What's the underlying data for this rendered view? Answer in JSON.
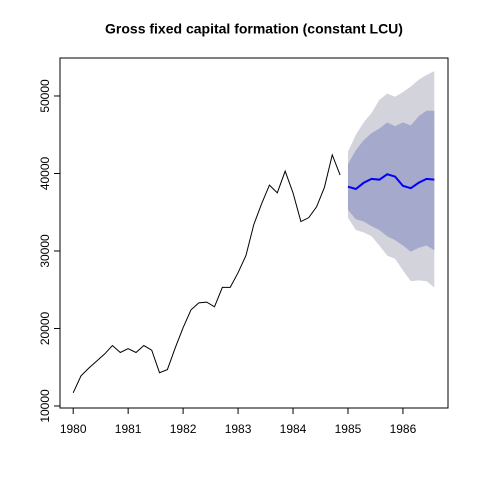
{
  "chart_data": {
    "type": "line",
    "title": "Gross fixed capital formation (constant LCU)",
    "x": [
      1980,
      1980.143,
      1980.286,
      1980.429,
      1980.571,
      1980.714,
      1980.857,
      1981,
      1981.143,
      1981.286,
      1981.429,
      1981.571,
      1981.714,
      1981.857,
      1982,
      1982.143,
      1982.286,
      1982.429,
      1982.571,
      1982.714,
      1982.857,
      1983,
      1983.143,
      1983.286,
      1983.429,
      1983.571,
      1983.714,
      1983.857,
      1984,
      1984.143,
      1984.286,
      1984.429,
      1984.571,
      1984.714,
      1984.857
    ],
    "values": [
      11700,
      13900,
      14900,
      15800,
      16700,
      17800,
      16900,
      17400,
      16900,
      17800,
      17200,
      14300,
      14700,
      17500,
      20100,
      22400,
      23300,
      23400,
      22800,
      25300,
      25300,
      27200,
      29400,
      33400,
      36100,
      38500,
      37500,
      40300,
      37500,
      33800,
      34300,
      35700,
      38200,
      42400,
      39800
    ],
    "color": "#000000",
    "forecast": {
      "x": [
        1985,
        1985.143,
        1985.286,
        1985.429,
        1985.571,
        1985.714,
        1985.857,
        1986,
        1986.143,
        1986.286,
        1986.429,
        1986.571
      ],
      "mean": [
        38300,
        38000,
        38800,
        39300,
        39200,
        39900,
        39600,
        38400,
        38100,
        38800,
        39300,
        39200
      ],
      "lo80": [
        35300,
        34100,
        33800,
        33200,
        32700,
        31900,
        31400,
        30700,
        29900,
        30400,
        30700,
        30100
      ],
      "hi80": [
        41200,
        43000,
        44300,
        45200,
        45800,
        46600,
        46100,
        46600,
        46200,
        47400,
        48100,
        48100
      ],
      "lo95": [
        34300,
        32700,
        32400,
        31900,
        30700,
        29400,
        29000,
        27500,
        26100,
        26200,
        26100,
        25300
      ],
      "hi95": [
        42800,
        45000,
        46600,
        47800,
        49500,
        50300,
        49900,
        50500,
        51200,
        52100,
        52700,
        53200
      ],
      "color": "#0000ff",
      "color80": "#a5a9cc",
      "color95": "#d3d3db"
    },
    "xlim": [
      1979.76,
      1986.82
    ],
    "ylim": [
      9740,
      54900
    ],
    "xticks": [
      1980,
      1981,
      1982,
      1983,
      1984,
      1985,
      1986
    ],
    "yticks": [
      10000,
      20000,
      30000,
      40000,
      50000
    ]
  }
}
